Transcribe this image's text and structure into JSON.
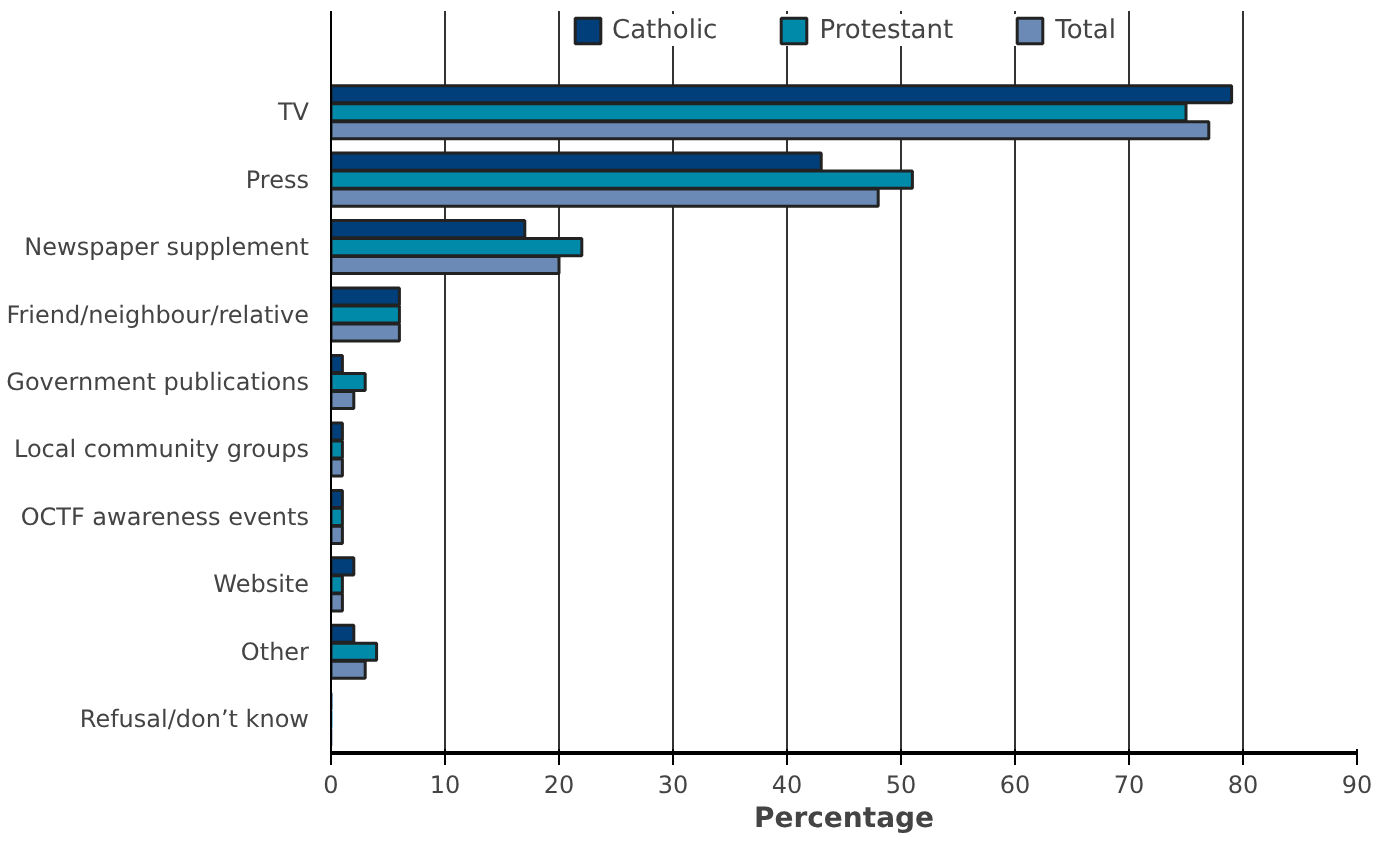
{
  "chart_data": {
    "type": "bar",
    "orientation": "horizontal",
    "xlabel": "Percentage",
    "categories": [
      "TV",
      "Press",
      "Newspaper supplement",
      "Friend/neighbour/relative",
      "Government publications",
      "Local community groups",
      "OCTF awareness events",
      "Website",
      "Other",
      "Refusal/don’t know"
    ],
    "series": [
      {
        "name": "Catholic",
        "color": "#003f7a",
        "values": [
          79,
          43,
          17,
          6,
          1,
          1,
          1,
          2,
          2,
          0
        ]
      },
      {
        "name": "Protestant",
        "color": "#008aaa",
        "values": [
          75,
          51,
          22,
          6,
          3,
          1,
          1,
          1,
          4,
          0
        ]
      },
      {
        "name": "Total",
        "color": "#6b8ab5",
        "values": [
          77,
          48,
          20,
          6,
          2,
          1,
          1,
          1,
          3,
          0
        ]
      }
    ],
    "xlim": [
      0,
      90
    ],
    "xticks": [
      0,
      10,
      20,
      30,
      40,
      50,
      60,
      70,
      80,
      90
    ],
    "grid": "x",
    "legend": "top"
  }
}
